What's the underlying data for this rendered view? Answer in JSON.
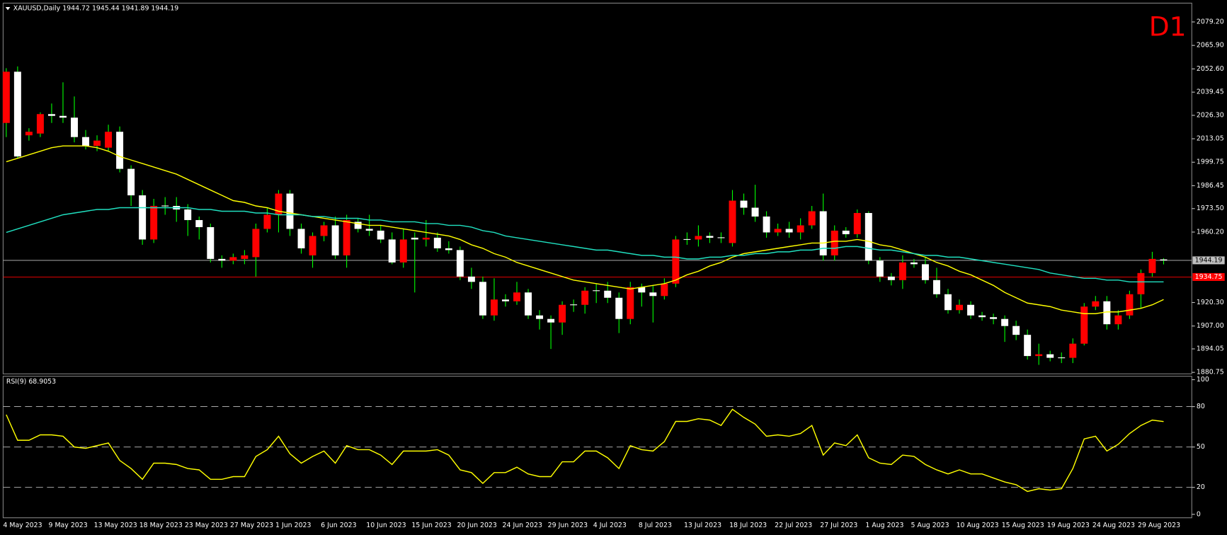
{
  "header": {
    "title": "XAUUSD,Daily 1944.72 1945.44 1941.89 1944.19",
    "timeframe": "D1"
  },
  "chart_data": [
    {
      "type": "candlestick",
      "categories": [
        "4 May 2023",
        null,
        null,
        null,
        "9 May 2023",
        null,
        null,
        null,
        "13 May 2023",
        null,
        null,
        null,
        "18 May 2023",
        null,
        null,
        null,
        "23 May 2023",
        null,
        null,
        null,
        "27 May 2023",
        null,
        null,
        null,
        "1 Jun 2023",
        null,
        null,
        null,
        "6 Jun 2023",
        null,
        null,
        null,
        "10 Jun 2023",
        null,
        null,
        null,
        "15 Jun 2023",
        null,
        null,
        null,
        "20 Jun 2023",
        null,
        null,
        null,
        "24 Jun 2023",
        null,
        null,
        null,
        "29 Jun 2023",
        null,
        null,
        null,
        "4 Jul 2023",
        null,
        null,
        null,
        "8 Jul 2023",
        null,
        null,
        null,
        "13 Jul 2023",
        null,
        null,
        null,
        "18 Jul 2023",
        null,
        null,
        null,
        "22 Jul 2023",
        null,
        null,
        null,
        "27 Jul 2023",
        null,
        null,
        null,
        "1 Aug 2023",
        null,
        null,
        null,
        "5 Aug 2023",
        null,
        null,
        null,
        "10 Aug 2023",
        null,
        null,
        null,
        "15 Aug 2023",
        null,
        null,
        null,
        "19 Aug 2023",
        null,
        null,
        null,
        "24 Aug 2023",
        null,
        null,
        null,
        "29 Aug 2023",
        null,
        null
      ],
      "open": [
        2022,
        2051,
        2015,
        2016,
        2027,
        2026,
        2025,
        2014,
        2009,
        2008,
        2017,
        1996,
        1981,
        1956,
        1975,
        1975,
        1973,
        1967,
        1963,
        1945,
        1944,
        1945,
        1946,
        1962,
        1970,
        1982,
        1962,
        1947,
        1958,
        1964,
        1947,
        1966,
        1962,
        1961,
        1956,
        1943,
        1957,
        1956,
        1957,
        1951,
        1950,
        1935,
        1932,
        1913,
        1922,
        1921,
        1926,
        1913,
        1911,
        1909,
        1919,
        1919,
        1927,
        1927,
        1923,
        1911,
        1929,
        1926,
        1924,
        1931,
        1956,
        1956,
        1958,
        1957,
        1954,
        1978,
        1974,
        1969,
        1960,
        1962,
        1960,
        1964,
        1972,
        1947,
        1961,
        1959,
        1971,
        1944,
        1935,
        1933,
        1943,
        1942,
        1933,
        1925,
        1916,
        1919,
        1913,
        1912,
        1911,
        1907,
        1902,
        1890,
        1891,
        1889,
        1889,
        1897,
        1918,
        1921,
        1908,
        1913,
        1925,
        1937,
        1944.72
      ],
      "high": [
        2053,
        2054,
        2019,
        2028,
        2033,
        2045,
        2037,
        2018,
        2015,
        2021,
        2020,
        1998,
        1984,
        1979,
        1980,
        1980,
        1976,
        1969,
        1965,
        1947,
        1948,
        1950,
        1965,
        1974,
        1984,
        1984,
        1965,
        1960,
        1966,
        1969,
        1970,
        1968,
        1970,
        1964,
        1960,
        1962,
        1960,
        1967,
        1960,
        1955,
        1952,
        1940,
        1935,
        1934,
        1925,
        1932,
        1928,
        1916,
        1913,
        1921,
        1922,
        1929,
        1931,
        1932,
        1926,
        1932,
        1931,
        1930,
        1934,
        1958,
        1960,
        1964,
        1960,
        1960,
        1984,
        1982,
        1987,
        1972,
        1965,
        1966,
        1968,
        1975,
        1982,
        1964,
        1963,
        1973,
        1972,
        1946,
        1937,
        1947,
        1945,
        1946,
        1940,
        1928,
        1922,
        1921,
        1915,
        1914,
        1913,
        1910,
        1905,
        1897,
        1893,
        1892,
        1900,
        1920,
        1924,
        1924,
        1916,
        1927,
        1939,
        1949,
        1945.44
      ],
      "low": [
        2014,
        2002,
        2012,
        2014,
        2022,
        2022,
        2011,
        2007,
        2006,
        2006,
        1994,
        1975,
        1953,
        1954,
        1970,
        1966,
        1958,
        1956,
        1943,
        1940,
        1942,
        1942,
        1935,
        1960,
        1960,
        1958,
        1948,
        1940,
        1955,
        1945,
        1940,
        1960,
        1958,
        1954,
        1942,
        1940,
        1926,
        1952,
        1949,
        1948,
        1933,
        1928,
        1911,
        1910,
        1918,
        1919,
        1911,
        1905,
        1894,
        1902,
        1915,
        1914,
        1920,
        1920,
        1903,
        1908,
        1918,
        1909,
        1922,
        1929,
        1953,
        1952,
        1954,
        1954,
        1952,
        1970,
        1966,
        1957,
        1958,
        1957,
        1956,
        1962,
        1944,
        1944,
        1957,
        1957,
        1942,
        1932,
        1930,
        1928,
        1940,
        1931,
        1923,
        1914,
        1914,
        1911,
        1910,
        1908,
        1898,
        1899,
        1888,
        1885,
        1887,
        1886,
        1886,
        1896,
        1916,
        1905,
        1905,
        1911,
        1917,
        1935,
        1941.89
      ],
      "close": [
        2051,
        2003,
        2017,
        2027,
        2026,
        2025,
        2014,
        2009,
        2012,
        2017,
        1996,
        1981,
        1956,
        1975,
        1975,
        1973,
        1967,
        1963,
        1945,
        1944,
        1946,
        1947,
        1962,
        1970,
        1982,
        1962,
        1951,
        1958,
        1964,
        1947,
        1967,
        1962,
        1961,
        1956,
        1943,
        1956,
        1956,
        1957,
        1951,
        1950,
        1935,
        1932,
        1913,
        1922,
        1921,
        1926,
        1913,
        1911,
        1909,
        1919,
        1919,
        1927,
        1927,
        1923,
        1911,
        1929,
        1926,
        1924,
        1931,
        1956,
        1956,
        1958,
        1957,
        1957,
        1978,
        1974,
        1969,
        1960,
        1962,
        1960,
        1964,
        1972,
        1947,
        1961,
        1959,
        1971,
        1944,
        1935,
        1933,
        1943,
        1942,
        1933,
        1925,
        1916,
        1919,
        1913,
        1912,
        1911,
        1907,
        1902,
        1890,
        1891,
        1889,
        1889,
        1897,
        1918,
        1921,
        1908,
        1913,
        1925,
        1937,
        1945,
        1944.19
      ],
      "up_color": "#ff0000",
      "down_color": "#ffffff",
      "wick_color": "#00ff00",
      "series": [
        {
          "color": "#ffff00",
          "values": [
            2000,
            2002,
            2004,
            2006,
            2008,
            2009,
            2009,
            2009,
            2008,
            2006,
            2003,
            2001,
            1999,
            1997,
            1995,
            1993,
            1990,
            1987,
            1984,
            1981,
            1978,
            1977,
            1975,
            1974,
            1972,
            1971,
            1970,
            1969,
            1968,
            1967,
            1966,
            1965,
            1964,
            1964,
            1963,
            1962,
            1961,
            1960,
            1959,
            1958,
            1956,
            1953,
            1951,
            1948,
            1946,
            1943,
            1941,
            1939,
            1937,
            1935,
            1933,
            1932,
            1931,
            1930,
            1929,
            1928,
            1929,
            1930,
            1931,
            1933,
            1936,
            1938,
            1941,
            1943,
            1946,
            1948,
            1949,
            1950,
            1951,
            1952,
            1953,
            1954,
            1954,
            1955,
            1955,
            1956,
            1955,
            1953,
            1952,
            1950,
            1948,
            1946,
            1943,
            1941,
            1938,
            1936,
            1933,
            1930,
            1926,
            1923,
            1920,
            1919,
            1918,
            1916,
            1915,
            1914,
            1914,
            1915,
            1915,
            1916,
            1917,
            1919,
            1922
          ]
        },
        {
          "color": "#20e0c0",
          "values": [
            1960,
            1962,
            1964,
            1966,
            1968,
            1970,
            1971,
            1972,
            1973,
            1973,
            1974,
            1974,
            1974,
            1974,
            1974,
            1974,
            1974,
            1973,
            1973,
            1972,
            1972,
            1972,
            1971,
            1971,
            1970,
            1970,
            1970,
            1969,
            1969,
            1968,
            1968,
            1968,
            1967,
            1967,
            1966,
            1966,
            1966,
            1965,
            1965,
            1964,
            1964,
            1963,
            1961,
            1960,
            1958,
            1957,
            1956,
            1955,
            1954,
            1953,
            1952,
            1951,
            1950,
            1950,
            1949,
            1948,
            1947,
            1947,
            1946,
            1946,
            1945,
            1945,
            1946,
            1946,
            1947,
            1947,
            1948,
            1948,
            1949,
            1949,
            1950,
            1950,
            1951,
            1951,
            1952,
            1952,
            1951,
            1950,
            1950,
            1949,
            1948,
            1947,
            1947,
            1946,
            1946,
            1945,
            1944,
            1943,
            1942,
            1941,
            1940,
            1939,
            1937,
            1936,
            1935,
            1934,
            1934,
            1933,
            1933,
            1932,
            1932,
            1932,
            1932
          ]
        }
      ],
      "price_lines": [
        {
          "value": 1944.19,
          "color": "#c0c0c0"
        },
        {
          "value": 1934.75,
          "color": "#ff0000"
        }
      ],
      "ylim": [
        1879.9,
        2089.4
      ],
      "yticks": [
        {
          "value": 2079.2,
          "label": "2079.20"
        },
        {
          "value": 2065.9,
          "label": "2065.90"
        },
        {
          "value": 2052.6,
          "label": "2052.60"
        },
        2039.45,
        {
          "value": 2026.3,
          "label": "2026.30"
        },
        2013.05,
        1999.75,
        1986.45,
        {
          "value": 1973.5,
          "label": "1973.50"
        },
        {
          "value": 1960.2,
          "label": "1960.20"
        },
        {
          "value": 1920.3,
          "label": "1920.30"
        },
        {
          "value": 1907,
          "label": "1907.00"
        },
        1894.05,
        1880.75
      ]
    },
    {
      "type": "line",
      "title": "RSI(9) 68.9053",
      "color": "#ffff00",
      "values": [
        74,
        55,
        55,
        59,
        59,
        58,
        50,
        49,
        51,
        53,
        40,
        34,
        26,
        38,
        38,
        37,
        34,
        33,
        26,
        26,
        28,
        28,
        43,
        48,
        58,
        45,
        38,
        43,
        47,
        38,
        51,
        48,
        48,
        44,
        37,
        47,
        47,
        47,
        48,
        44,
        33,
        31,
        23,
        31,
        31,
        35,
        30,
        28,
        28,
        39,
        39,
        47,
        47,
        42,
        34,
        51,
        48,
        47,
        54,
        69,
        69,
        71,
        70,
        66,
        78,
        72,
        67,
        58,
        59,
        58,
        60,
        66,
        44,
        53,
        51,
        59,
        42,
        38,
        37,
        44,
        43,
        37,
        33,
        30,
        33,
        30,
        30,
        27,
        24,
        22,
        17,
        19,
        18,
        19,
        34,
        56,
        58,
        47,
        52,
        60,
        66,
        70,
        68.9053
      ],
      "levels": [
        20,
        50,
        80
      ],
      "ylim": [
        -2,
        102
      ],
      "yticks": [
        0,
        20,
        50,
        80,
        100
      ]
    }
  ]
}
